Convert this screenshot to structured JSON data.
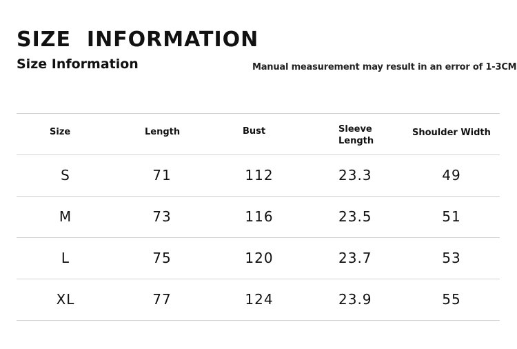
{
  "header": {
    "title": "SIZE  INFORMATION",
    "subtitle": "Size Information",
    "note": "Manual measurement may result in an error of 1-3CM"
  },
  "table": {
    "columns": [
      "Size",
      "Length",
      "Bust",
      "Sleeve",
      "Length",
      "Shoulder Width"
    ],
    "header_labels": {
      "size": "Size",
      "length": "Length",
      "bust": "Bust",
      "sleeve_line1": "Sleeve",
      "sleeve_line2": "Length",
      "shoulder": "Shoulder Width"
    },
    "rows": [
      {
        "size": "S",
        "length": "71",
        "bust": "112",
        "sleeve": "23.3",
        "shoulder": "49"
      },
      {
        "size": "M",
        "length": "73",
        "bust": "116",
        "sleeve": "23.5",
        "shoulder": "51"
      },
      {
        "size": "L",
        "length": "75",
        "bust": "120",
        "sleeve": "23.7",
        "shoulder": "53"
      },
      {
        "size": "XL",
        "length": "77",
        "bust": "124",
        "sleeve": "23.9",
        "shoulder": "55"
      }
    ]
  }
}
